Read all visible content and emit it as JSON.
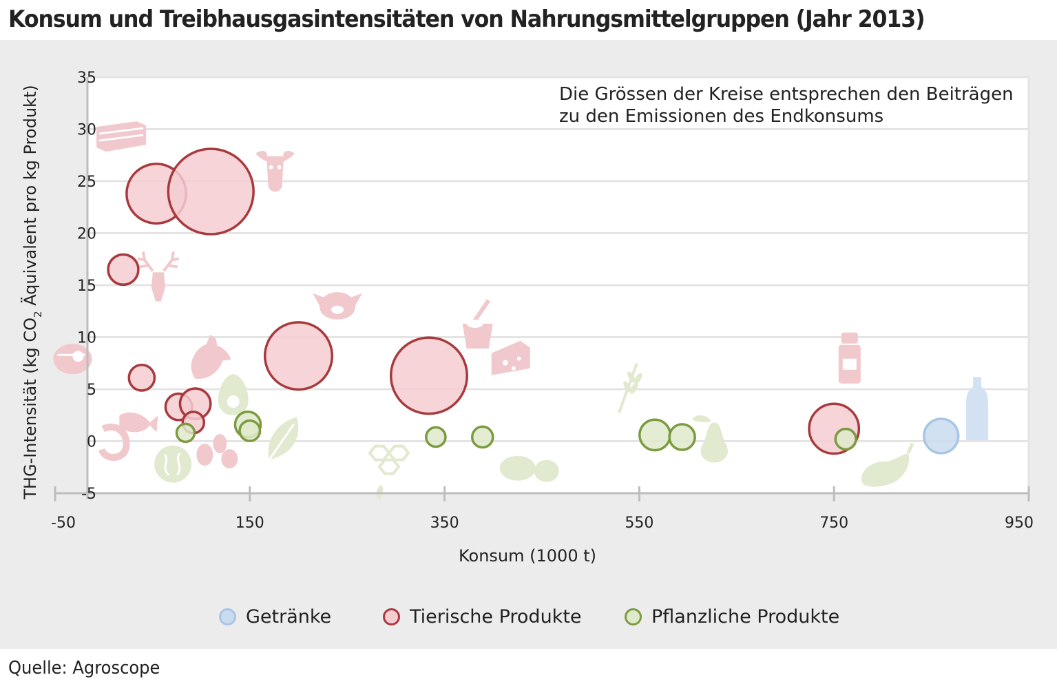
{
  "title": "Konsum und Treibhausgasintensitäten von Nahrungsmittelgruppen (Jahr 2013)",
  "source": "Quelle: Agroscope",
  "colors": {
    "panel": "#ececec",
    "plot_bg": "#ffffff",
    "grid": "#e4e4e4",
    "axis": "#bdbdbd",
    "getraenke_fill": "#c9dcf0",
    "getraenke_stroke": "#a9c5e6",
    "tierisch_fill": "#f4cdd1",
    "tierisch_stroke": "#a83a3e",
    "pflanzlich_fill": "#dfeacb",
    "pflanzlich_stroke": "#7c9b40",
    "icon_tierisch": "#f1c8cc",
    "icon_pflanzlich": "#e1e9cf",
    "icon_getraenke": "#d2e2f3"
  },
  "chart_data": {
    "type": "scatter",
    "title": "Konsum und Treibhausgasintensitäten von Nahrungsmittelgruppen (Jahr 2013)",
    "xlabel": "Konsum (1000 t)",
    "ylabel_parts": [
      "THG-Intensität (kg CO",
      "2",
      " Äquivalent pro kg Produkt)"
    ],
    "xlim": [
      -50,
      950
    ],
    "ylim": [
      -5,
      35
    ],
    "x_ticks": [
      -50,
      150,
      350,
      550,
      750,
      950
    ],
    "y_ticks": [
      -5,
      0,
      5,
      10,
      15,
      20,
      25,
      30,
      35
    ],
    "grid": true,
    "legend_position": "bottom",
    "note_lines": [
      "Die Grössen der Kreise entsprechen den Beiträgen",
      "zu den Emissionen des Endkonsums"
    ],
    "size_reference": {
      "consumption": 300,
      "intensity": 10
    },
    "series": [
      {
        "name": "Getränke",
        "key": "getraenke",
        "points": [
          {
            "x": 860,
            "y": 0.5
          }
        ]
      },
      {
        "name": "Tierische Produkte",
        "key": "tierisch",
        "points": [
          {
            "x": 54,
            "y": 23.8
          },
          {
            "x": 110,
            "y": 24.0
          },
          {
            "x": 20,
            "y": 16.5
          },
          {
            "x": 39,
            "y": 6.1
          },
          {
            "x": 77,
            "y": 3.3
          },
          {
            "x": 94,
            "y": 3.6
          },
          {
            "x": 92,
            "y": 1.8
          },
          {
            "x": 200,
            "y": 8.2
          },
          {
            "x": 334,
            "y": 6.3
          },
          {
            "x": 750,
            "y": 1.2
          }
        ]
      },
      {
        "name": "Pflanzliche Produkte",
        "key": "pflanzlich",
        "points": [
          {
            "x": 148,
            "y": 1.6
          },
          {
            "x": 150,
            "y": 1.0
          },
          {
            "x": 84,
            "y": 0.8
          },
          {
            "x": 341,
            "y": 0.4
          },
          {
            "x": 389,
            "y": 0.4
          },
          {
            "x": 566,
            "y": 0.6
          },
          {
            "x": 594,
            "y": 0.4
          },
          {
            "x": 762,
            "y": 0.2
          }
        ]
      }
    ]
  },
  "icons": [
    {
      "name": "bacon-icon",
      "group": "tierisch",
      "x": 18,
      "y": 29.3
    },
    {
      "name": "cow-icon",
      "group": "tierisch",
      "x": 176,
      "y": 26.2
    },
    {
      "name": "deer-icon",
      "group": "tierisch",
      "x": 56,
      "y": 15.7
    },
    {
      "name": "pig-icon",
      "group": "tierisch",
      "x": 240,
      "y": 13.3
    },
    {
      "name": "steak-icon",
      "group": "tierisch",
      "x": -32,
      "y": 7.9
    },
    {
      "name": "chicken-icon",
      "group": "tierisch",
      "x": 108,
      "y": 8.0
    },
    {
      "name": "yogurt-icon",
      "group": "tierisch",
      "x": 384,
      "y": 10.5
    },
    {
      "name": "cheese-icon",
      "group": "tierisch",
      "x": 418,
      "y": 8.2
    },
    {
      "name": "fish-icon",
      "group": "tierisch",
      "x": 33,
      "y": 1.8
    },
    {
      "name": "shrimp-icon",
      "group": "tierisch",
      "x": 12,
      "y": 0.0
    },
    {
      "name": "eggs-icon",
      "group": "tierisch",
      "x": 115,
      "y": -0.9
    },
    {
      "name": "milk-can-icon",
      "group": "tierisch",
      "x": 766,
      "y": 7.8
    },
    {
      "name": "bottle-icon",
      "group": "getraenke",
      "x": 897,
      "y": 3.0
    },
    {
      "name": "avocado-icon",
      "group": "pflanzlich",
      "x": 133,
      "y": 4.6
    },
    {
      "name": "spinach-leaf-icon",
      "group": "pflanzlich",
      "x": 184,
      "y": 0.2
    },
    {
      "name": "walnut-icon",
      "group": "pflanzlich",
      "x": 71,
      "y": -2.2
    },
    {
      "name": "honeycomb-icon",
      "group": "pflanzlich",
      "x": 293,
      "y": -1.8
    },
    {
      "name": "potato-icon",
      "group": "pflanzlich",
      "x": 435,
      "y": -2.6
    },
    {
      "name": "wheat-icon",
      "group": "pflanzlich",
      "x": 539,
      "y": 5.1
    },
    {
      "name": "pear-icon",
      "group": "pflanzlich",
      "x": 627,
      "y": 0.2
    },
    {
      "name": "eggplant-icon",
      "group": "pflanzlich",
      "x": 805,
      "y": -2.6
    }
  ],
  "legend": [
    {
      "label": "Getränke",
      "key": "getraenke"
    },
    {
      "label": "Tierische Produkte",
      "key": "tierisch"
    },
    {
      "label": "Pflanzliche Produkte",
      "key": "pflanzlich"
    }
  ]
}
